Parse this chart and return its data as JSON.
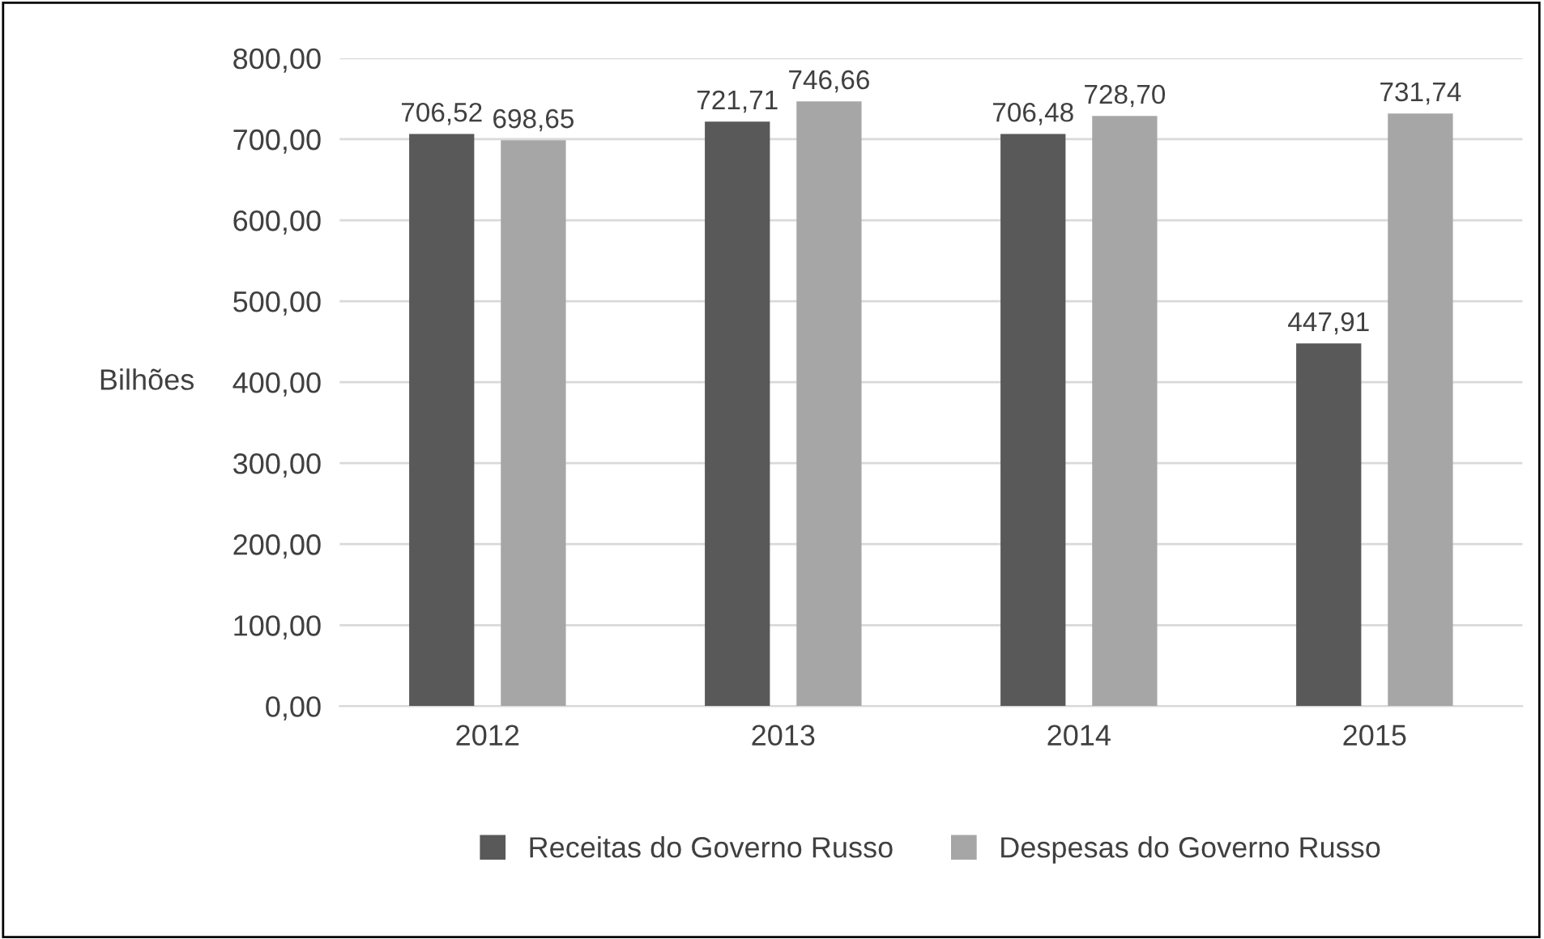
{
  "chart_data": {
    "type": "bar",
    "ylabel": "Bilhões",
    "categories": [
      "2012",
      "2013",
      "2014",
      "2015"
    ],
    "series": [
      {
        "name": "Receitas do Governo Russo",
        "color": "#595959",
        "values": [
          706.52,
          721.71,
          706.48,
          447.91
        ],
        "value_labels": [
          "706,52",
          "721,71",
          "706,48",
          "447,91"
        ]
      },
      {
        "name": "Despesas do Governo Russo",
        "color": "#a6a6a6",
        "values": [
          698.65,
          746.66,
          728.7,
          731.74
        ],
        "value_labels": [
          "698,65",
          "746,66",
          "728,70",
          "731,74"
        ]
      }
    ],
    "ylim": [
      0,
      800
    ],
    "yticks": [
      {
        "value": 0,
        "label": "0,00"
      },
      {
        "value": 100,
        "label": "100,00"
      },
      {
        "value": 200,
        "label": "200,00"
      },
      {
        "value": 300,
        "label": "300,00"
      },
      {
        "value": 400,
        "label": "400,00"
      },
      {
        "value": 500,
        "label": "500,00"
      },
      {
        "value": 600,
        "label": "600,00"
      },
      {
        "value": 700,
        "label": "700,00"
      },
      {
        "value": 800,
        "label": "800,00"
      }
    ],
    "grid": "y",
    "legend": "bottom"
  }
}
